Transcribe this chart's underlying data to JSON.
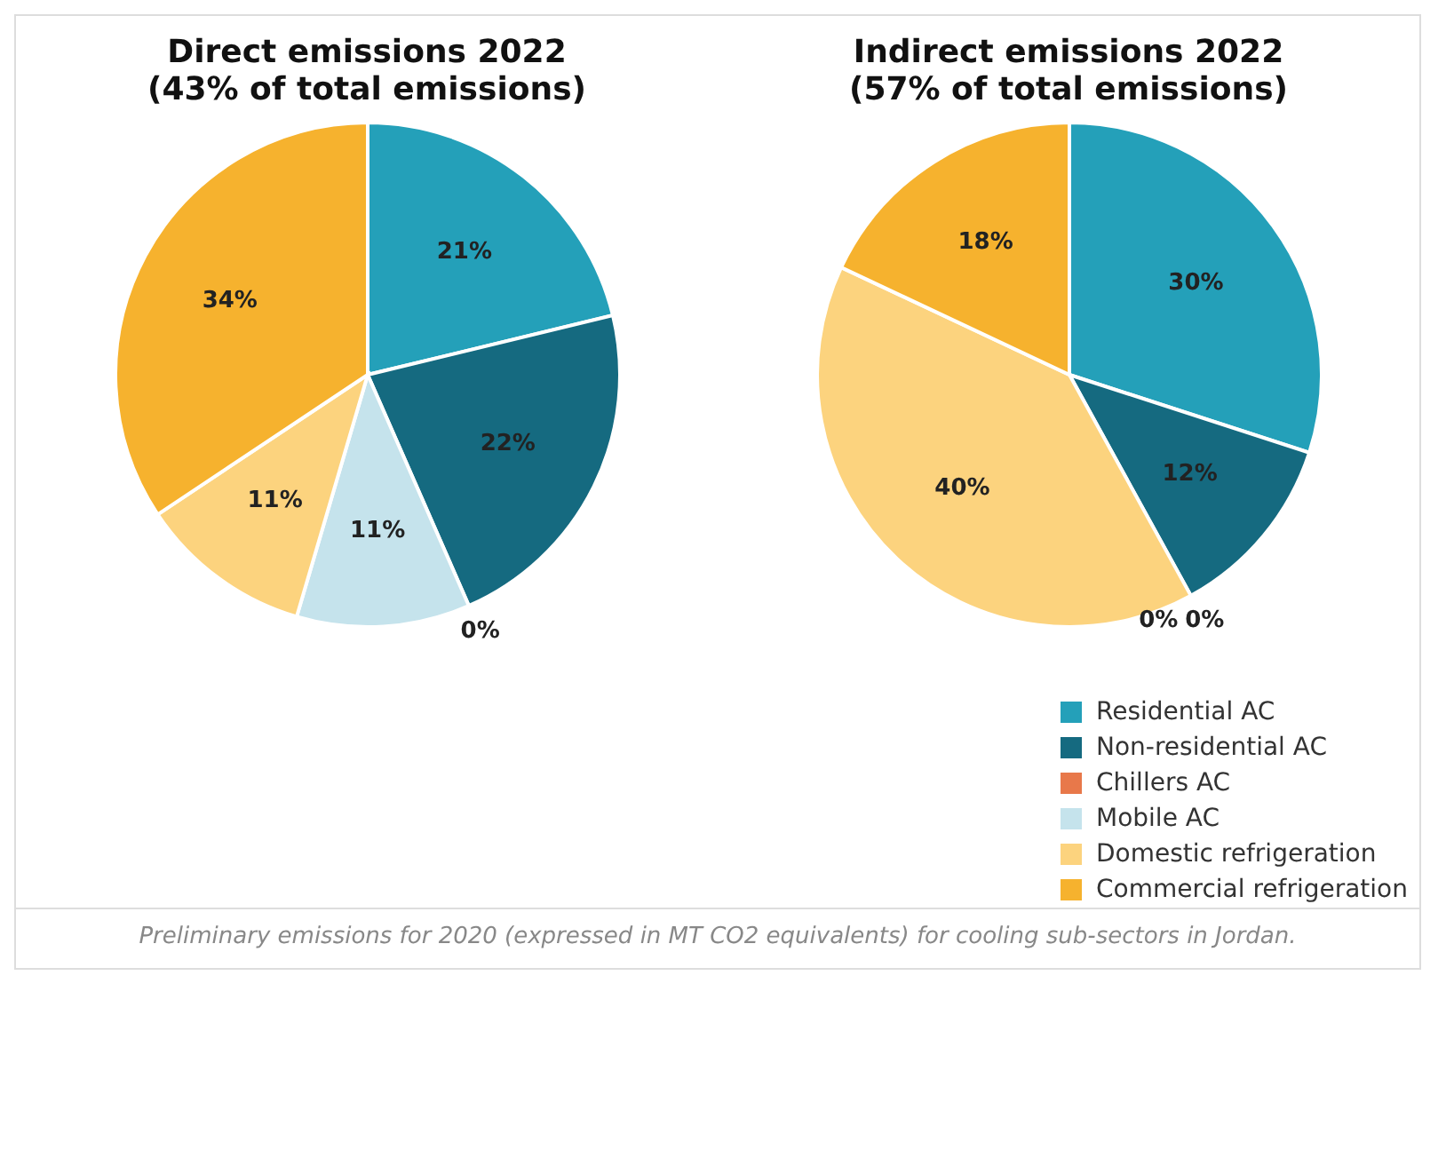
{
  "chart_data": [
    {
      "type": "pie",
      "title": "Direct emissions 2022",
      "subtitle": "(43% of total emissions)",
      "values": [
        21,
        22,
        0,
        11,
        11,
        34
      ],
      "categories": [
        null,
        null,
        null,
        null,
        null,
        null
      ],
      "value_labels": [
        "21%",
        "22%",
        "0%",
        "11%",
        "11%",
        "34%"
      ],
      "colors": [
        "#24a0b9",
        "#156a80",
        "#e8784a",
        "#c5e3ec",
        "#fcd37e",
        "#f6b22e"
      ],
      "legend": false,
      "annotations": [
        "Preliminary emissions for 2020 (expressed in MT CO2 equivalents) for cooling sub-sectors in Jordan."
      ]
    },
    {
      "type": "pie",
      "title": "Indirect emissions 2022",
      "subtitle": "(57% of total emissions)",
      "categories": [
        "Residential AC",
        "Non-residential AC",
        "Chillers AC",
        "Mobile AC",
        "Domestic refrigeration",
        "Commercial refrigeration"
      ],
      "values": [
        30,
        12,
        0,
        0,
        40,
        18
      ],
      "value_labels": [
        "30%",
        "12%",
        "0%",
        "0%",
        "40%",
        "18%"
      ],
      "colors": [
        "#24a0b9",
        "#156a80",
        "#e8784a",
        "#c5e3ec",
        "#fcd37e",
        "#f6b22e"
      ],
      "legend": "bottom right"
    }
  ]
}
